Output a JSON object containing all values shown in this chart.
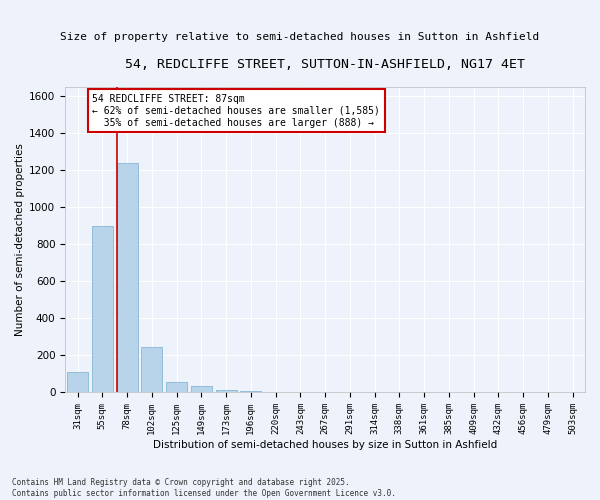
{
  "title": "54, REDCLIFFE STREET, SUTTON-IN-ASHFIELD, NG17 4ET",
  "subtitle": "Size of property relative to semi-detached houses in Sutton in Ashfield",
  "xlabel": "Distribution of semi-detached houses by size in Sutton in Ashfield",
  "ylabel": "Number of semi-detached properties",
  "categories": [
    "31sqm",
    "55sqm",
    "78sqm",
    "102sqm",
    "125sqm",
    "149sqm",
    "173sqm",
    "196sqm",
    "220sqm",
    "243sqm",
    "267sqm",
    "291sqm",
    "314sqm",
    "338sqm",
    "361sqm",
    "385sqm",
    "409sqm",
    "432sqm",
    "456sqm",
    "479sqm",
    "503sqm"
  ],
  "values": [
    110,
    900,
    1240,
    245,
    55,
    35,
    15,
    10,
    0,
    0,
    0,
    0,
    0,
    0,
    0,
    0,
    0,
    0,
    0,
    0,
    0
  ],
  "bar_color": "#b8d4eb",
  "bar_edge_color": "#7aaecf",
  "vline_color": "#cc0000",
  "annotation_text": "54 REDCLIFFE STREET: 87sqm\n← 62% of semi-detached houses are smaller (1,585)\n  35% of semi-detached houses are larger (888) →",
  "annotation_border_color": "#cc0000",
  "ylim": [
    0,
    1650
  ],
  "yticks": [
    0,
    200,
    400,
    600,
    800,
    1000,
    1200,
    1400,
    1600
  ],
  "background_color": "#eef2fa",
  "grid_color": "#ffffff",
  "footer1": "Contains HM Land Registry data © Crown copyright and database right 2025.",
  "footer2": "Contains public sector information licensed under the Open Government Licence v3.0.",
  "title_fontsize": 9.5,
  "subtitle_fontsize": 8,
  "label_fontsize": 7.5,
  "tick_fontsize": 6.5,
  "annotation_fontsize": 7
}
